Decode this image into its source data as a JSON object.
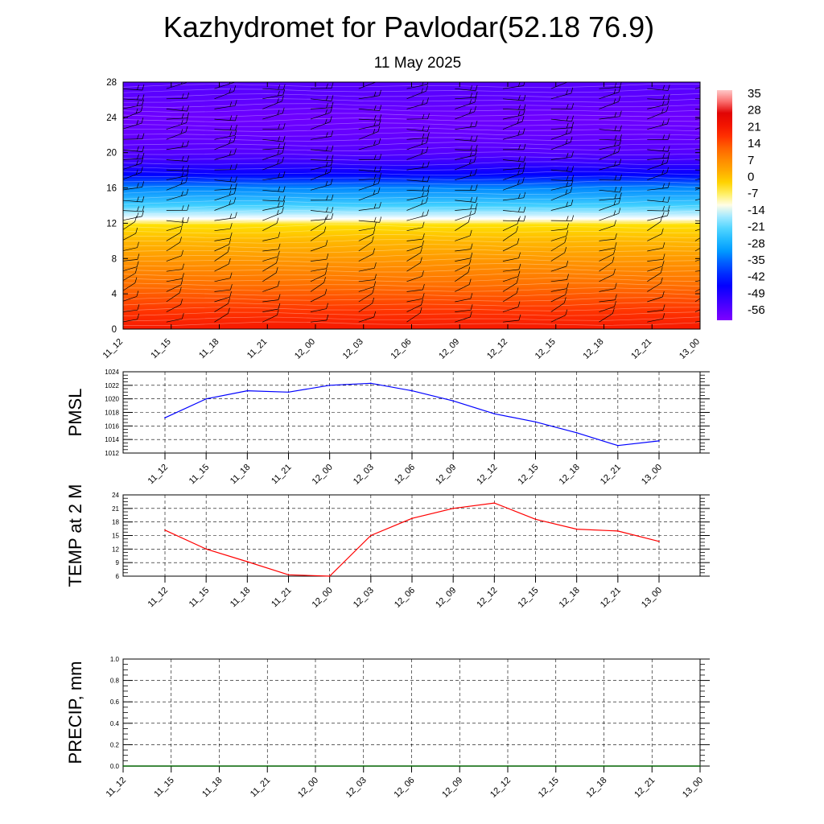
{
  "title": "Kazhydromet for Pavlodar(52.18 76.9)",
  "subtitle": "11 May 2025",
  "time_labels": [
    "11_12",
    "11_15",
    "11_18",
    "11_21",
    "12_00",
    "12_03",
    "12_06",
    "12_09",
    "12_12",
    "12_15",
    "12_18",
    "12_21",
    "13_00"
  ],
  "chart_data": [
    {
      "type": "heatmap",
      "name": "temperature-cross-section",
      "x": [
        "11_12",
        "11_15",
        "11_18",
        "11_21",
        "12_00",
        "12_03",
        "12_06",
        "12_09",
        "12_12",
        "12_15",
        "12_18",
        "12_21",
        "13_00"
      ],
      "ylim": [
        0,
        28
      ],
      "yticks": [
        0,
        4,
        8,
        12,
        16,
        20,
        24,
        28
      ],
      "colorbar_ticks": [
        35,
        28,
        21,
        14,
        7,
        0,
        -7,
        -14,
        -21,
        -28,
        -35,
        -42,
        -49,
        -56
      ],
      "colorbar_range": [
        -60,
        38
      ],
      "profile": [
        {
          "level": 0,
          "value": 22
        },
        {
          "level": 2,
          "value": 18
        },
        {
          "level": 5,
          "value": 12
        },
        {
          "level": 8,
          "value": 6
        },
        {
          "level": 10,
          "value": 2
        },
        {
          "level": 11.8,
          "value": -3
        },
        {
          "level": 12.5,
          "value": -12
        },
        {
          "level": 14,
          "value": -22
        },
        {
          "level": 16,
          "value": -32
        },
        {
          "level": 17.5,
          "value": -45
        },
        {
          "level": 19,
          "value": -52
        },
        {
          "level": 20,
          "value": -55
        },
        {
          "level": 22,
          "value": -57
        },
        {
          "level": 24,
          "value": -58
        },
        {
          "level": 26,
          "value": -56
        },
        {
          "level": 28,
          "value": -55
        }
      ],
      "wind_barbs": "wind barbs at every 3-hourly time step and level"
    },
    {
      "type": "line",
      "name": "PMSL",
      "ylabel": "PMSL",
      "x": [
        "11_12",
        "11_15",
        "11_18",
        "11_21",
        "12_00",
        "12_03",
        "12_06",
        "12_09",
        "12_12",
        "12_15",
        "12_18",
        "12_21",
        "13_00"
      ],
      "values": [
        1017.2,
        1020.0,
        1021.2,
        1021.0,
        1022.0,
        1022.3,
        1021.2,
        1019.7,
        1017.8,
        1016.6,
        1015.0,
        1013.1,
        1013.8
      ],
      "ylim": [
        1012,
        1024
      ],
      "yticks": [
        1012,
        1014,
        1016,
        1018,
        1020,
        1022,
        1024
      ],
      "color": "#0000ff",
      "grid": true
    },
    {
      "type": "line",
      "name": "TEMP at 2 M",
      "ylabel": "TEMP at 2 M",
      "x": [
        "11_12",
        "11_15",
        "11_18",
        "11_21",
        "12_00",
        "12_03",
        "12_06",
        "12_09",
        "12_12",
        "12_15",
        "12_18",
        "12_21",
        "13_00"
      ],
      "values": [
        16.2,
        12.0,
        9.2,
        6.3,
        6.0,
        15.0,
        18.8,
        21.0,
        22.2,
        18.6,
        16.4,
        16.0,
        13.7
      ],
      "ylim": [
        6,
        24
      ],
      "yticks": [
        6,
        9,
        12,
        15,
        18,
        21,
        24
      ],
      "color": "#ff0000",
      "grid": true
    },
    {
      "type": "line",
      "name": "PRECIP, mm",
      "ylabel": "PRECIP, mm",
      "x": [
        "11_12",
        "11_15",
        "11_18",
        "11_21",
        "12_00",
        "12_03",
        "12_06",
        "12_09",
        "12_12",
        "12_15",
        "12_18",
        "12_21",
        "13_00"
      ],
      "values": [
        0,
        0,
        0,
        0,
        0,
        0,
        0,
        0,
        0,
        0,
        0,
        0,
        0
      ],
      "ylim": [
        0,
        1.0
      ],
      "yticks": [
        "0.0",
        "0.2",
        "0.4",
        "0.6",
        "0.8",
        "1.0"
      ],
      "color": "#006400",
      "grid": true
    }
  ]
}
